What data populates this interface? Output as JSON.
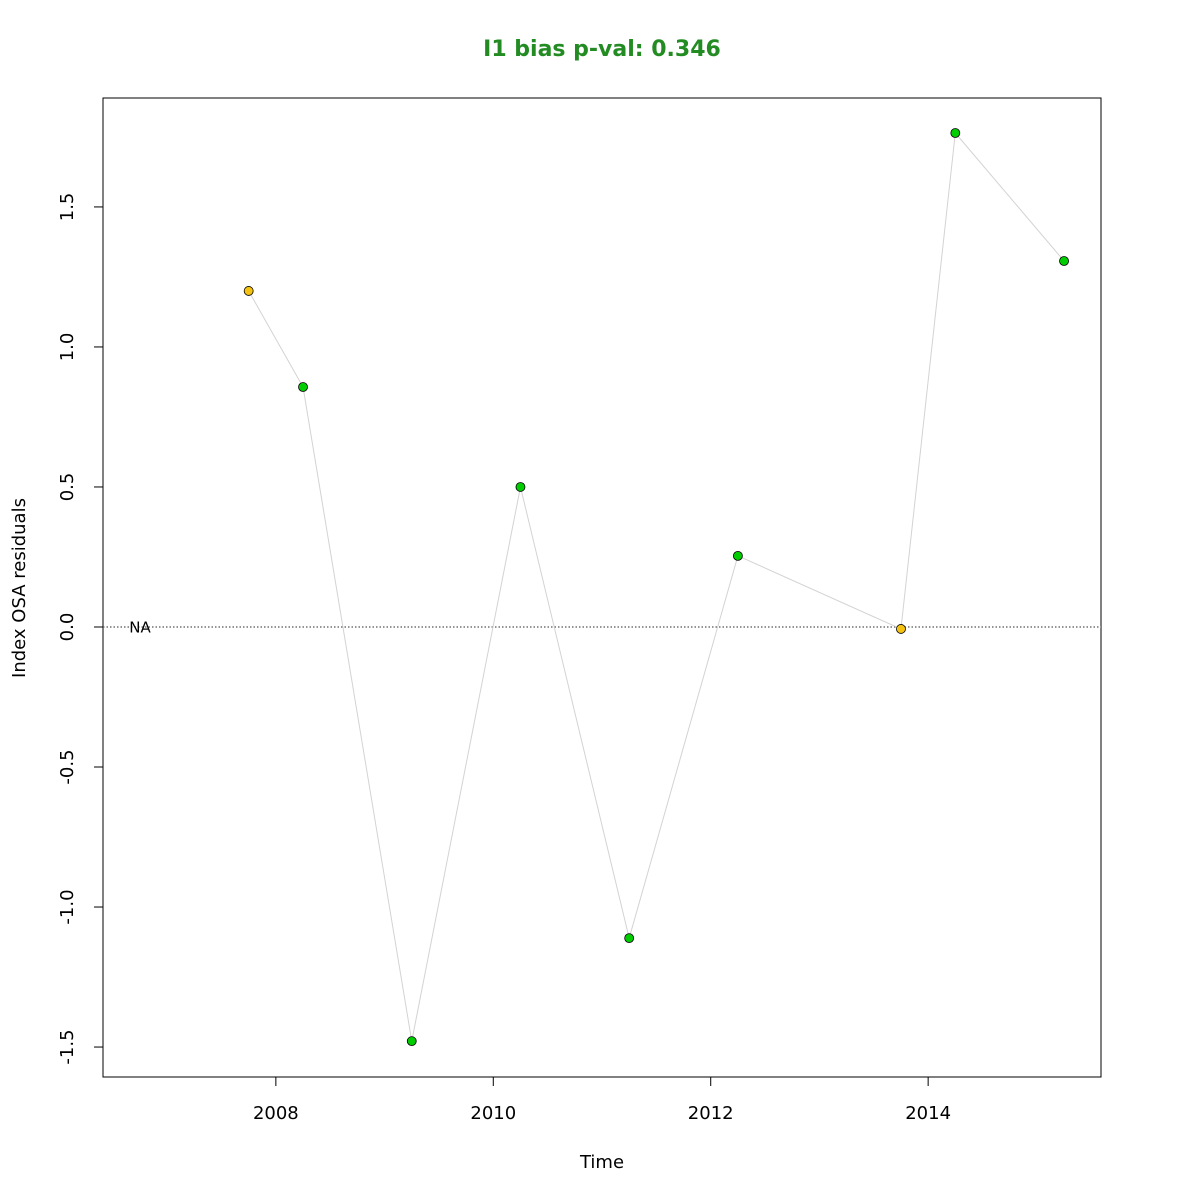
{
  "chart_data": {
    "type": "line",
    "title": "I1 bias p-val: 0.346",
    "title_color": "#228b22",
    "xlabel": "Time",
    "ylabel": "Index OSA residuals",
    "x": [
      2007.75,
      2008.25,
      2009.25,
      2010.25,
      2011.25,
      2012.25,
      2013.75,
      2014.25,
      2015.25
    ],
    "values": [
      1.2,
      0.857,
      -1.479,
      0.5,
      -1.111,
      0.254,
      -0.007,
      1.764,
      1.307
    ],
    "point_colors": [
      "#f5c211",
      "#00cd00",
      "#00cd00",
      "#00cd00",
      "#00cd00",
      "#00cd00",
      "#f5c211",
      "#00cd00",
      "#00cd00"
    ],
    "line_color": "#d3d3d3",
    "xlim": [
      2006.41,
      2015.59
    ],
    "ylim": [
      -1.607,
      1.889
    ],
    "xticks": [
      2008,
      2010,
      2012,
      2014
    ],
    "yticks": [
      -1.5,
      {
        "value": -1,
        "label": "-1.0"
      },
      -0.5,
      {
        "value": 0,
        "label": "0.0"
      },
      0.5,
      {
        "value": 1,
        "label": "1.0"
      },
      1.5
    ],
    "hline": 0,
    "annotation": {
      "text": "NA",
      "x": 2006.75,
      "y": 0
    }
  }
}
